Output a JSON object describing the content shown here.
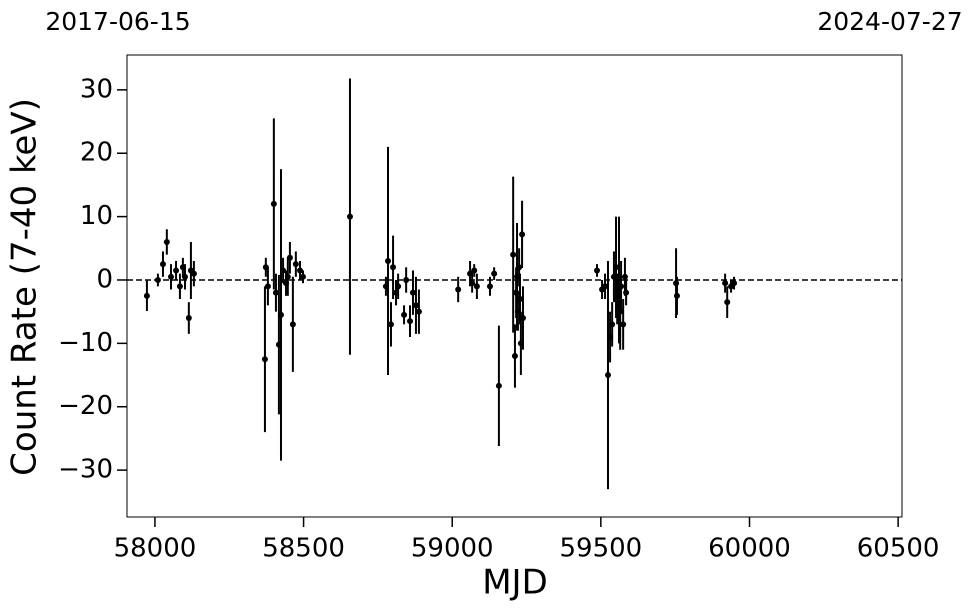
{
  "chart_data": {
    "type": "errorbar",
    "top_labels": [
      "2017-06-15",
      "2024-07-27"
    ],
    "xlabel": "MJD",
    "ylabel": "Count Rate (7-40 keV)",
    "color": "#000000",
    "reference_line": 0,
    "x": [
      57973,
      58010,
      58027,
      58040,
      58054,
      58071,
      58084,
      58094,
      58101,
      58114,
      58121,
      58131,
      58370,
      58373,
      58380,
      58400,
      58407,
      58417,
      58424,
      58431,
      58441,
      58447,
      58454,
      58464,
      58474,
      58488,
      58498,
      58656,
      58777,
      58784,
      58794,
      58801,
      58811,
      58818,
      58838,
      58845,
      58858,
      58868,
      58878,
      58888,
      59020,
      59060,
      59067,
      59074,
      59083,
      59127,
      59141,
      59157,
      59205,
      59211,
      59215,
      59218,
      59221,
      59225,
      59228,
      59231,
      59235,
      59238,
      59487,
      59504,
      59514,
      59524,
      59531,
      59538,
      59544,
      59551,
      59555,
      59561,
      59565,
      59568,
      59575,
      59581,
      59585,
      59753,
      59756,
      59918,
      59925,
      59938,
      59948
    ],
    "values": [
      -2.5,
      0,
      2.5,
      6,
      0.5,
      1.5,
      -1,
      2,
      0.5,
      -6,
      1.5,
      1,
      -12.5,
      2,
      -1,
      12,
      -2,
      -10.2,
      -5.5,
      1.5,
      -0.5,
      0.5,
      3.5,
      -7,
      2.5,
      1.5,
      0.5,
      10,
      -1,
      3,
      -7,
      2,
      -2,
      -1,
      -5.5,
      0,
      -6.5,
      -2,
      -4,
      -5,
      -1.5,
      1,
      -0.5,
      1.5,
      -1,
      -1,
      1,
      -16.7,
      4,
      -12,
      -2,
      0.5,
      -5,
      2,
      -3,
      -10,
      7.2,
      -6,
      1.5,
      -1.5,
      -1,
      -15,
      -9,
      -7,
      0.5,
      2,
      -3,
      0,
      -5,
      -1,
      -7,
      0.5,
      -2,
      -0.5,
      -2.5,
      -0.5,
      -3.5,
      -1,
      -0.5
    ],
    "errors": [
      2.4,
      1,
      2,
      2,
      2,
      1.5,
      2,
      1.5,
      2,
      2.5,
      4.5,
      2,
      11.5,
      1.5,
      3,
      13.5,
      3,
      11,
      23,
      2,
      2,
      3,
      2.5,
      7.5,
      2,
      1.5,
      1,
      21.8,
      1.5,
      18,
      3.5,
      5,
      2,
      2,
      1.5,
      2,
      2.5,
      3.5,
      4.5,
      3.5,
      2,
      2,
      1.5,
      1,
      2,
      1.5,
      1,
      9.5,
      12.3,
      5,
      4,
      8.5,
      3,
      3,
      4,
      5,
      5.3,
      5,
      1,
      1.5,
      2,
      18,
      4,
      3.5,
      4,
      8,
      4,
      10,
      6,
      4,
      4,
      3,
      2,
      5.5,
      3,
      1.5,
      2.5,
      1,
      1
    ],
    "xlim": [
      57906,
      60513
    ],
    "ylim": [
      -37.4,
      35.5
    ],
    "xticks": [
      58000,
      58500,
      59000,
      59500,
      60000,
      60500
    ],
    "yticks": [
      {
        "value": -30,
        "label": "−30"
      },
      {
        "value": -20,
        "label": "−20"
      },
      {
        "value": -10,
        "label": "−10"
      },
      0,
      10,
      20,
      30
    ]
  }
}
